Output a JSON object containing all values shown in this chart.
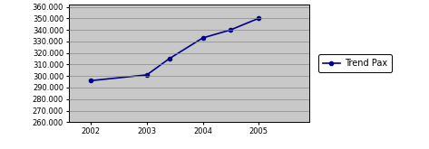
{
  "x": [
    2002,
    2003,
    2003.4,
    2004,
    2004.5,
    2005
  ],
  "y": [
    296000,
    301000,
    315000,
    333000,
    340000,
    350000
  ],
  "xlim": [
    2001.6,
    2005.9
  ],
  "ylim": [
    260000,
    362000
  ],
  "yticks": [
    260000,
    270000,
    280000,
    290000,
    300000,
    310000,
    320000,
    330000,
    340000,
    350000,
    360000
  ],
  "xticks": [
    2002,
    2003,
    2004,
    2005
  ],
  "line_color": "#00008B",
  "marker": "o",
  "marker_size": 3,
  "legend_label": "Trend Pax",
  "plot_bg_color": "#C8C8C8",
  "fig_bg_color": "#FFFFFF",
  "grid_color": "#888888",
  "tick_fontsize": 6,
  "legend_fontsize": 7,
  "linewidth": 1.2
}
